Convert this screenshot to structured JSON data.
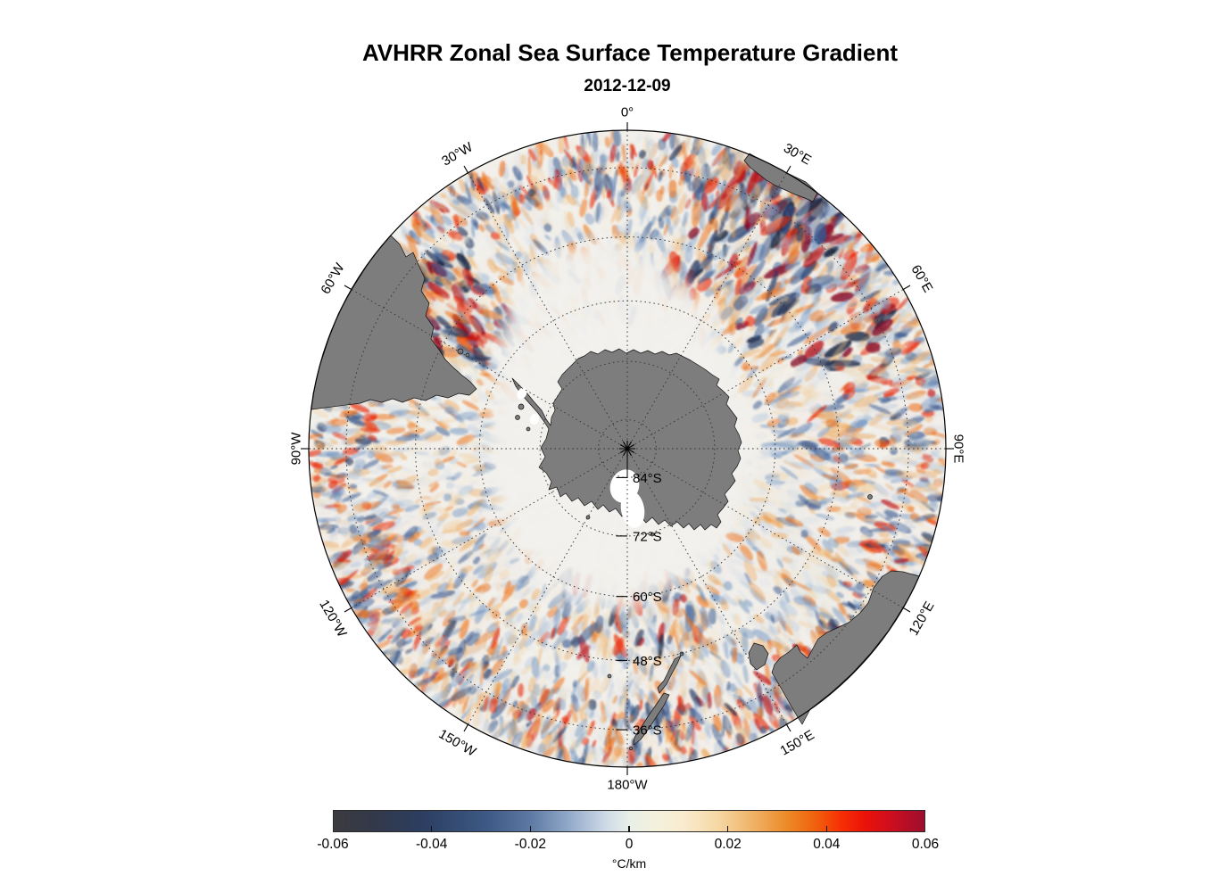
{
  "title": "AVHRR Zonal Sea Surface Temperature Gradient",
  "subtitle_date": "2012-12-09",
  "map": {
    "projection": "south polar stereographic",
    "outer_latitude_deg_s": 30,
    "latitude_labels": [
      {
        "text": "84°S",
        "lat": 84
      },
      {
        "text": "72°S",
        "lat": 72
      },
      {
        "text": "60°S",
        "lat": 60
      },
      {
        "text": "48°S",
        "lat": 48
      },
      {
        "text": "36°S",
        "lat": 36
      }
    ],
    "meridian_labels": [
      {
        "text": "0°",
        "az": 0,
        "rot": 0
      },
      {
        "text": "30°E",
        "az": 30,
        "rot": 30
      },
      {
        "text": "60°E",
        "az": 60,
        "rot": 60
      },
      {
        "text": "90°E",
        "az": 90,
        "rot": 90
      },
      {
        "text": "120°E",
        "az": 120,
        "rot": -60
      },
      {
        "text": "150°E",
        "az": 150,
        "rot": -30
      },
      {
        "text": "180°W",
        "az": 180,
        "rot": 0
      },
      {
        "text": "150°W",
        "az": 210,
        "rot": 30
      },
      {
        "text": "120°W",
        "az": 240,
        "rot": 60
      },
      {
        "text": "90°W",
        "az": 270,
        "rot": -90
      },
      {
        "text": "60°W",
        "az": 300,
        "rot": -60
      },
      {
        "text": "30°W",
        "az": 330,
        "rot": -30
      }
    ]
  },
  "colorbar": {
    "min": -0.06,
    "max": 0.06,
    "tick_values": [
      -0.06,
      -0.04,
      -0.02,
      0,
      0.02,
      0.04,
      0.06
    ],
    "tick_labels": [
      "-0.06",
      "-0.04",
      "-0.02",
      "0",
      "0.02",
      "0.04",
      "0.06"
    ],
    "unit": "°C/km",
    "gradient": [
      "#3b3b40 0%",
      "#32394a 7%",
      "#2c3e61 15%",
      "#3d5985 26%",
      "#5b77a2 33%",
      "#93abca 40%",
      "#cdd9e7 46%",
      "#e9efe8 50%",
      "#f2f1de 54%",
      "#f9ecd0 59%",
      "#f6d8a5 65%",
      "#f0b266 71%",
      "#ec8825 77%",
      "#f15c0c 82%",
      "#f62e04 86%",
      "#ea1209 90%",
      "#cf0f1d 94%",
      "#9d0e2e 100%"
    ]
  },
  "chart_data": {
    "type": "heatmap",
    "title": "AVHRR Zonal Sea Surface Temperature Gradient",
    "date": "2012-12-09",
    "variable": "zonal sea surface temperature gradient",
    "units": "°C/km",
    "projection": "south polar stereographic centered on South Pole",
    "value_range": [
      -0.06,
      0.06
    ],
    "colorbar_ticks": [
      -0.06,
      -0.04,
      -0.02,
      0,
      0.02,
      0.04,
      0.06
    ],
    "latitude_rings_deg_s": [
      84,
      72,
      60,
      48,
      36
    ],
    "outer_boundary_deg_s": 30,
    "meridians_every_deg": 30,
    "legend_position": "bottom horizontal colorbar",
    "visible_landmasses": [
      "Antarctica",
      "South America tip",
      "southern Africa tip",
      "Australia",
      "Tasmania",
      "New Zealand"
    ],
    "field_description": "mottled positive (red/orange) and negative (blue) SST gradient streaks over near-zero cream/pale background; pale ice/no-data zone around Antarctica; strongest signals near 30°E-60°E sector, Agulhas region and Brazil-Malvinas confluence"
  }
}
